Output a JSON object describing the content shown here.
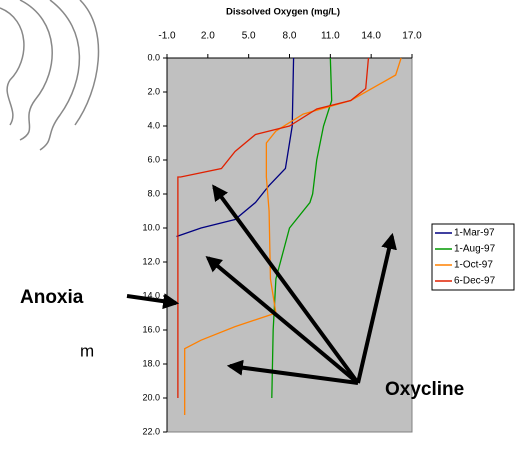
{
  "chart_data": {
    "type": "line",
    "title": "Dissolved Oxygen (mg/L)",
    "xlim": [
      -1,
      17
    ],
    "ylim": [
      0,
      22
    ],
    "y_inverted": true,
    "xticks": [
      {
        "value": -1,
        "label": "-1.0"
      },
      {
        "value": 2,
        "label": "2.0"
      },
      {
        "value": 5,
        "label": "5.0"
      },
      {
        "value": 8,
        "label": "8.0"
      },
      {
        "value": 11,
        "label": "11.0"
      },
      {
        "value": 14,
        "label": "14.0"
      },
      {
        "value": 17,
        "label": "17.0"
      }
    ],
    "yticks": [
      {
        "value": 0,
        "label": "0.0"
      },
      {
        "value": 2,
        "label": "2.0"
      },
      {
        "value": 4,
        "label": "4.0"
      },
      {
        "value": 6,
        "label": "6.0"
      },
      {
        "value": 8,
        "label": "8.0"
      },
      {
        "value": 10,
        "label": "10.0"
      },
      {
        "value": 12,
        "label": "12.0"
      },
      {
        "value": 14,
        "label": "14.0"
      },
      {
        "value": 16,
        "label": "16.0"
      },
      {
        "value": 18,
        "label": "18.0"
      },
      {
        "value": 20,
        "label": "20.0"
      },
      {
        "value": 22,
        "label": "22.0"
      }
    ],
    "background": "#c0c0c0",
    "series": [
      {
        "name": "1-Mar-97",
        "color": "#000080",
        "x": [
          8.3,
          8.2,
          8.0,
          7.7,
          6.5,
          5.5,
          4.0,
          1.5,
          -0.3
        ],
        "y": [
          0,
          4,
          5,
          6.5,
          7.5,
          8.5,
          9.5,
          10.0,
          10.5
        ]
      },
      {
        "name": "1-Aug-97",
        "color": "#009900",
        "x": [
          11.0,
          11.1,
          10.5,
          10.0,
          9.7,
          9.5,
          8.0,
          7.5,
          7.0,
          6.8,
          6.7
        ],
        "y": [
          0,
          2.5,
          4,
          6,
          8,
          8.5,
          10,
          11.5,
          13,
          16,
          20
        ]
      },
      {
        "name": "1-Oct-97",
        "color": "#ff8000",
        "x": [
          16.2,
          15.8,
          12.5,
          9.0,
          7.0,
          6.3,
          6.3,
          6.5,
          6.6,
          7.0,
          4.0,
          1.5,
          0.3,
          0.3
        ],
        "y": [
          0,
          1,
          2.5,
          3.3,
          4.3,
          5,
          7,
          9,
          13,
          15,
          15.8,
          16.6,
          17.1,
          21
        ]
      },
      {
        "name": "6-Dec-97",
        "color": "#e02000",
        "x": [
          13.8,
          13.6,
          12.5,
          10.0,
          8.0,
          5.5,
          4.0,
          3.0,
          0.0,
          -0.2,
          -0.2
        ],
        "y": [
          0,
          1.8,
          2.5,
          3,
          4,
          4.5,
          5.5,
          6.5,
          7,
          7,
          20
        ]
      }
    ],
    "annotations": [
      "Anoxia",
      "Oxycline",
      "m"
    ]
  }
}
